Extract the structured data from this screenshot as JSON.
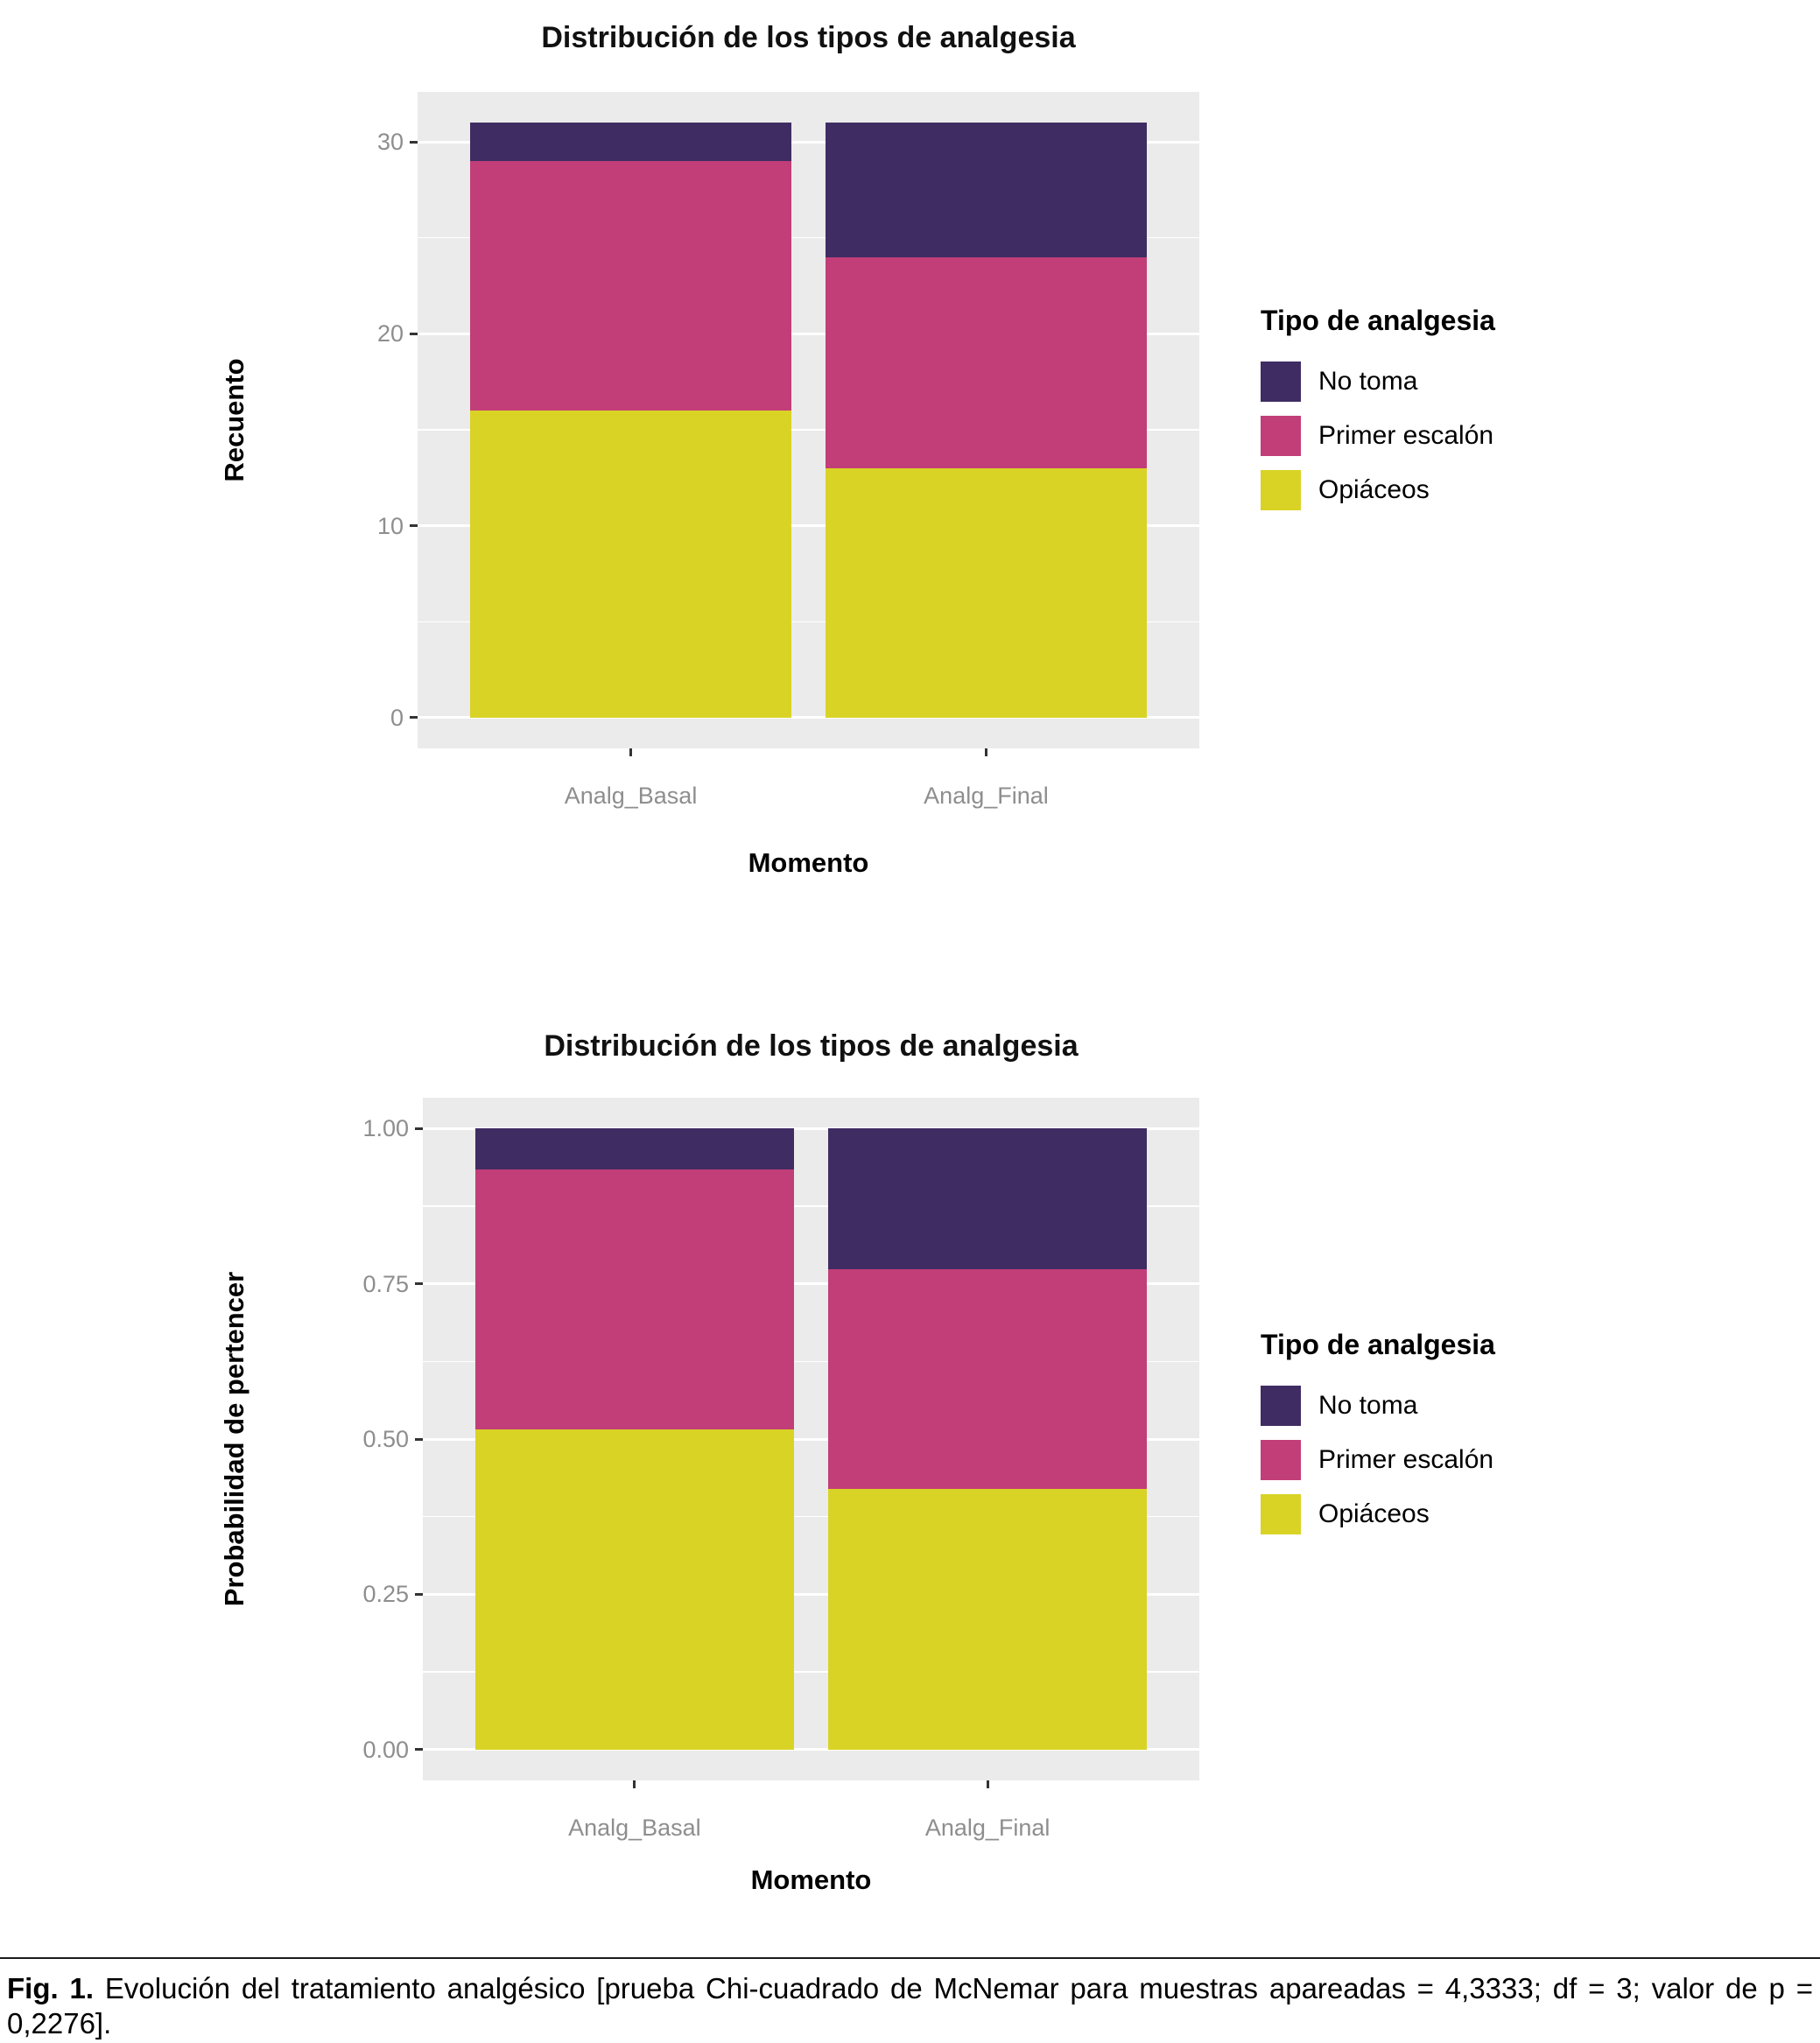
{
  "style": {
    "page_bg": "#ffffff",
    "panel_bg": "#ebebeb",
    "grid_color": "#ffffff",
    "tick_label_color": "#8e8e8e",
    "tick_mark_color": "#333333",
    "axis_title_color": "#000000"
  },
  "legend": {
    "title": "Tipo de analgesia",
    "items": [
      {
        "label": "No toma",
        "color": "#3f2c63"
      },
      {
        "label": "Primer escalón",
        "color": "#c23e78"
      },
      {
        "label": "Opiáceos",
        "color": "#d9d326"
      }
    ]
  },
  "chart_data": [
    {
      "type": "bar",
      "stacked": true,
      "title": "Distribución de los tipos de analgesia",
      "xlabel": "Momento",
      "ylabel": "Recuento",
      "categories": [
        "Analg_Basal",
        "Analg_Final"
      ],
      "ylim": [
        -1.6,
        32.6
      ],
      "yticks": [
        {
          "label": "0",
          "value": 0
        },
        {
          "label": "10",
          "value": 10
        },
        {
          "label": "20",
          "value": 20
        },
        {
          "label": "30",
          "value": 30
        }
      ],
      "minor_ticks": [
        5,
        15,
        25
      ],
      "grid": true,
      "legend_title": "Tipo de analgesia",
      "legend_position": "right",
      "series": [
        {
          "name": "Opiáceos",
          "color": "#d9d326",
          "values": [
            16,
            13
          ]
        },
        {
          "name": "Primer escalón",
          "color": "#c23e78",
          "values": [
            13,
            11
          ]
        },
        {
          "name": "No toma",
          "color": "#3f2c63",
          "values": [
            2,
            7
          ]
        }
      ]
    },
    {
      "type": "bar",
      "stacked": true,
      "title": "Distribución de los tipos de analgesia",
      "xlabel": "Momento",
      "ylabel": "Probabilidad de pertencer",
      "categories": [
        "Analg_Basal",
        "Analg_Final"
      ],
      "ylim": [
        -0.05,
        1.05
      ],
      "yticks": [
        {
          "label": "0.00",
          "value": 0
        },
        {
          "label": "0.25",
          "value": 0.25
        },
        {
          "label": "0.50",
          "value": 0.5
        },
        {
          "label": "0.75",
          "value": 0.75
        },
        {
          "label": "1.00",
          "value": 1.0
        }
      ],
      "minor_ticks": [
        0.125,
        0.375,
        0.625,
        0.875
      ],
      "grid": true,
      "legend_title": "Tipo de analgesia",
      "legend_position": "right",
      "series": [
        {
          "name": "Opiáceos",
          "color": "#d9d326",
          "values": [
            0.516,
            0.419
          ]
        },
        {
          "name": "Primer escalón",
          "color": "#c23e78",
          "values": [
            0.419,
            0.355
          ]
        },
        {
          "name": "No toma",
          "color": "#3f2c63",
          "values": [
            0.065,
            0.226
          ]
        }
      ]
    }
  ],
  "caption": {
    "prefix": "Fig. 1.",
    "text": "Evolución del tratamiento analgésico [prueba Chi-cuadrado de McNemar para muestras apareadas = 4,3333; df = 3; valor de p = 0,2276]."
  }
}
